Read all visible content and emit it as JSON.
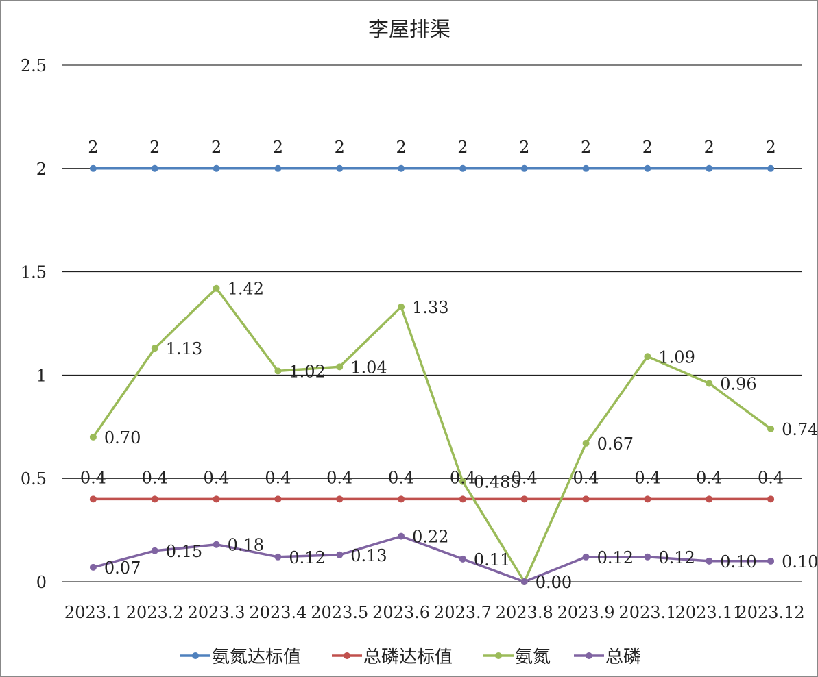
{
  "chart_data": {
    "type": "line",
    "title": "李屋排渠",
    "xlabel": "",
    "ylabel": "",
    "ylim": [
      0,
      2.5
    ],
    "y_ticks": [
      "0",
      "0.5",
      "1",
      "1.5",
      "2",
      "2.5"
    ],
    "grid": true,
    "legend_position": "bottom",
    "categories": [
      "2023.1",
      "2023.2",
      "2023.3",
      "2023.4",
      "2023.5",
      "2023.6",
      "2023.7",
      "2023.8",
      "2023.9",
      "2023.10",
      "2023.11",
      "2023.12"
    ],
    "category_labels": [
      "2023.1",
      "2023.2",
      "2023.3",
      "2023.4",
      "2023.5",
      "2023.6",
      "2023.7",
      "2023.8",
      "2023.9",
      "2023.1",
      "2023.11",
      "2023.12"
    ],
    "series": [
      {
        "name": "氨氮达标值",
        "color": "#4f81bd",
        "values": [
          2,
          2,
          2,
          2,
          2,
          2,
          2,
          2,
          2,
          2,
          2,
          2
        ],
        "labels": [
          "2",
          "2",
          "2",
          "2",
          "2",
          "2",
          "2",
          "2",
          "2",
          "2",
          "2",
          "2"
        ],
        "label_position": "above"
      },
      {
        "name": "总磷达标值",
        "color": "#c0504d",
        "values": [
          0.4,
          0.4,
          0.4,
          0.4,
          0.4,
          0.4,
          0.4,
          0.4,
          0.4,
          0.4,
          0.4,
          0.4
        ],
        "labels": [
          "0.4",
          "0.4",
          "0.4",
          "0.4",
          "0.4",
          "0.4",
          "0.4",
          "0.4",
          "0.4",
          "0.4",
          "0.4",
          "0.4"
        ],
        "label_position": "above"
      },
      {
        "name": "氨氮",
        "color": "#9bbb59",
        "values": [
          0.7,
          1.13,
          1.42,
          1.02,
          1.04,
          1.33,
          0.485,
          0.0,
          0.67,
          1.09,
          0.96,
          0.74
        ],
        "labels": [
          "0.70",
          "1.13",
          "1.42",
          "1.02",
          "1.04",
          "1.33",
          "0.485",
          "0.00",
          "0.67",
          "1.09",
          "0.96",
          "0.74"
        ],
        "label_position": "right"
      },
      {
        "name": "总磷",
        "color": "#8064a2",
        "values": [
          0.07,
          0.15,
          0.18,
          0.12,
          0.13,
          0.22,
          0.11,
          0.0,
          0.12,
          0.12,
          0.1,
          0.1
        ],
        "labels": [
          "0.07",
          "0.15",
          "0.18",
          "0.12",
          "0.13",
          "0.22",
          "0.11",
          "0.00",
          "0.12",
          "0.12",
          "0.10",
          "0.10"
        ],
        "label_position": "right"
      }
    ]
  }
}
